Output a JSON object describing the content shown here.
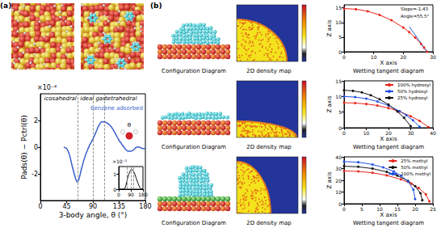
{
  "figure": {
    "panel_labels": [
      "(a)",
      "(b)"
    ],
    "captions": [
      "Configuration Diagram",
      "2D density map",
      "Wetting tangent diagram"
    ],
    "icon_label": "θ"
  },
  "chart_data": [
    {
      "type": "line",
      "x_label": "3-body angle, θ (°)",
      "y_label": "Pads(θ) − Pctrl(θ)",
      "y_multiplier": "×10⁻⁴",
      "x": [
        40,
        45,
        50,
        55,
        60,
        63,
        66,
        70,
        75,
        80,
        85,
        90,
        95,
        100,
        105,
        110,
        115,
        120,
        125,
        130,
        135,
        140,
        145,
        150,
        155,
        160,
        165,
        170,
        175,
        180
      ],
      "series": [
        {
          "name": "benzene adsorbed",
          "color": "#3a5fcd",
          "values": [
            0,
            -0.1,
            -0.6,
            -1.5,
            -2.3,
            -2.6,
            -2.4,
            -1.7,
            -0.9,
            -0.3,
            0.2,
            0.6,
            1.1,
            1.6,
            1.9,
            1.9,
            1.8,
            1.6,
            1.3,
            0.9,
            0.5,
            0.2,
            -0.1,
            -0.3,
            -0.3,
            -0.2,
            0,
            0,
            -0.1,
            -0.1
          ]
        }
      ],
      "vlines": [
        {
          "x": 63.4,
          "label": "icosahedral"
        },
        {
          "x": 90,
          "label": "ideal gas"
        },
        {
          "x": 109.5,
          "label": "tetrahedral"
        }
      ],
      "xlim": [
        0,
        180
      ],
      "xticks": [
        0,
        45,
        90,
        135,
        180
      ],
      "ylim": [
        -4,
        4
      ],
      "yticks": [
        -2,
        0,
        2
      ],
      "grid": false
    },
    {
      "type": "line",
      "y_multiplier": "×10⁻²",
      "x": [
        0,
        30,
        45,
        55,
        65,
        75,
        85,
        95,
        105,
        115,
        125,
        135,
        145,
        155,
        165,
        180
      ],
      "series": [
        {
          "color": "#000000",
          "values": [
            0,
            0,
            0.05,
            0.3,
            0.7,
            1.0,
            1.2,
            1.3,
            1.25,
            1.1,
            0.85,
            0.6,
            0.35,
            0.15,
            0.03,
            0
          ]
        }
      ],
      "xlim": [
        0,
        180
      ],
      "xticks": [
        0,
        90,
        180
      ],
      "ylim": [
        0,
        1.5
      ],
      "yticks": [
        0,
        1
      ],
      "grid": false
    },
    {
      "type": "line",
      "x_label": "X axis",
      "y_label": "Z axis",
      "series": [
        {
          "color": "#e8231a",
          "marker": "circle",
          "line_style": "solid",
          "x": [
            0,
            4,
            8,
            12,
            16,
            20,
            22,
            24,
            26,
            27,
            28
          ],
          "values": [
            14.75,
            14.51,
            13.8,
            12.56,
            10.75,
            8.25,
            6.67,
            4.83,
            2.66,
            1.41,
            0
          ]
        }
      ],
      "tangent_slope": -1.43,
      "annotations": [
        "Slope=-1.43",
        "Angle=55.5°"
      ],
      "xlim": [
        0,
        30
      ],
      "xticks": [
        0,
        10,
        20,
        30
      ],
      "ylim": [
        0,
        16
      ],
      "yticks": [
        0,
        5,
        10,
        15
      ],
      "grid": false
    },
    {
      "type": "line",
      "x_label": "X axis",
      "y_label": "Z axis",
      "legend": "upper right",
      "series": [
        {
          "name": "100% hydroxyl",
          "color": "#e8231a",
          "marker": "circle",
          "line_style": "solid",
          "x": [
            0,
            5,
            10,
            15,
            20,
            25,
            30,
            34,
            38
          ],
          "values": [
            8,
            7.9,
            7.6,
            7.1,
            6.3,
            5.2,
            3.7,
            2.2,
            0.2
          ]
        },
        {
          "name": "50% hydroxyl",
          "color": "#2050e0",
          "marker": "circle",
          "line_style": "solid",
          "x": [
            0,
            5,
            10,
            15,
            20,
            25,
            28,
            31,
            34
          ],
          "values": [
            10,
            9.8,
            9.3,
            8.4,
            7.1,
            5.3,
            4,
            2.4,
            0.3
          ]
        },
        {
          "name": "25% hydroxyl",
          "color": "#111111",
          "marker": "circle",
          "line_style": "solid",
          "x": [
            0,
            4,
            8,
            12,
            16,
            20,
            24,
            27,
            30
          ],
          "values": [
            12,
            11.8,
            11.3,
            10.4,
            9.1,
            7.4,
            5.2,
            3.2,
            0.5
          ]
        }
      ],
      "xlim": [
        0,
        40
      ],
      "xticks": [
        0,
        10,
        20,
        30,
        40
      ],
      "ylim": [
        0,
        15
      ],
      "yticks": [
        0,
        5,
        10,
        15
      ],
      "grid": false
    },
    {
      "type": "line",
      "x_label": "X axis",
      "y_label": "Z axis",
      "legend": "upper right",
      "series": [
        {
          "name": "25% methyl",
          "color": "#e8231a",
          "marker": "circle",
          "line_style": "solid",
          "x": [
            0,
            4,
            8,
            12,
            16,
            19,
            21,
            23,
            24
          ],
          "values": [
            28,
            27.6,
            26.4,
            24.2,
            20.8,
            17,
            13.5,
            8,
            2
          ]
        },
        {
          "name": "50% methyl",
          "color": "#111111",
          "marker": "circle",
          "line_style": "solid",
          "x": [
            0,
            4,
            8,
            12,
            15,
            18,
            20,
            21.5,
            22
          ],
          "values": [
            32,
            31.5,
            30,
            27.2,
            24,
            19.5,
            15,
            9,
            3
          ]
        },
        {
          "name": "100% methyl",
          "color": "#2050e0",
          "marker": "circle",
          "line_style": "solid",
          "x": [
            0,
            4,
            8,
            11,
            14,
            16,
            18,
            19.5,
            20
          ],
          "values": [
            36,
            35.4,
            33.5,
            31,
            27.5,
            24,
            19,
            12,
            4
          ]
        }
      ],
      "xlim": [
        0,
        25
      ],
      "xticks": [
        0,
        5,
        10,
        15,
        20,
        25
      ],
      "ylim": [
        0,
        40
      ],
      "yticks": [
        0,
        10,
        20,
        30,
        40
      ],
      "grid": false
    }
  ]
}
